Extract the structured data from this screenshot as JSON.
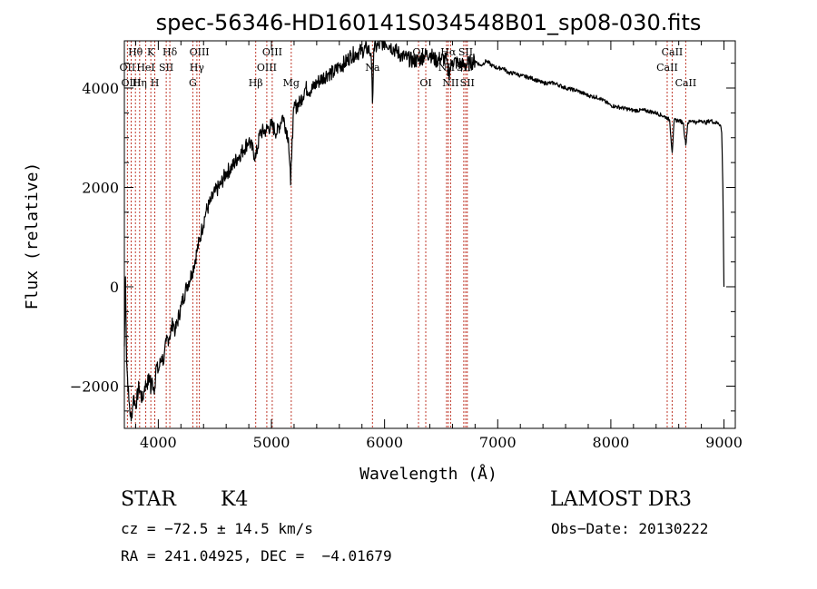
{
  "chart_data": {
    "type": "line",
    "title": "spec-56346-HD160141S034548B01_sp08-030.fits",
    "xlabel": "Wavelength (Å)",
    "ylabel": "Flux (relative)",
    "xlim": [
      3700,
      9100
    ],
    "ylim": [
      -2850,
      4950
    ],
    "x_ticks": [
      4000,
      5000,
      6000,
      7000,
      8000,
      9000
    ],
    "y_ticks": [
      -2000,
      0,
      2000,
      4000
    ],
    "x_tick_labels": [
      "4000",
      "5000",
      "6000",
      "7000",
      "8000",
      "9000"
    ],
    "y_tick_labels": [
      "−2000",
      "0",
      "2000",
      "4000"
    ],
    "series": [
      {
        "name": "spectrum",
        "x": [
          3700,
          3710,
          3720,
          3740,
          3760,
          3780,
          3800,
          3830,
          3860,
          3880,
          3900,
          3930,
          3933,
          3940,
          3968,
          3980,
          4000,
          4030,
          4050,
          4070,
          4100,
          4130,
          4150,
          4200,
          4250,
          4300,
          4340,
          4380,
          4420,
          4460,
          4500,
          4550,
          4600,
          4650,
          4700,
          4750,
          4800,
          4861,
          4900,
          4950,
          5000,
          5050,
          5100,
          5150,
          5170,
          5183,
          5200,
          5250,
          5300,
          5350,
          5400,
          5450,
          5500,
          5550,
          5600,
          5650,
          5700,
          5750,
          5800,
          5850,
          5880,
          5893,
          5905,
          5950,
          6000,
          6050,
          6100,
          6150,
          6200,
          6250,
          6300,
          6350,
          6400,
          6450,
          6500,
          6550,
          6563,
          6600,
          6650,
          6700,
          6750,
          6800,
          6850,
          6900,
          6950,
          7000,
          7050,
          7100,
          7150,
          7200,
          7300,
          7400,
          7500,
          7600,
          7700,
          7800,
          7900,
          8000,
          8100,
          8200,
          8300,
          8400,
          8450,
          8498,
          8520,
          8542,
          8560,
          8600,
          8640,
          8662,
          8680,
          8720,
          8760,
          8800,
          8840,
          8880,
          8920,
          8950,
          8970,
          8980,
          8990,
          9000
        ],
        "y": [
          -1200,
          200,
          -1500,
          -2300,
          -2700,
          -2200,
          -2400,
          -2000,
          -2300,
          -2000,
          -1950,
          -1800,
          -2150,
          -1900,
          -2050,
          -1600,
          -1700,
          -1400,
          -1500,
          -1100,
          -1000,
          -700,
          -900,
          -400,
          0,
          300,
          700,
          1100,
          1500,
          1700,
          1900,
          2050,
          2300,
          2400,
          2600,
          2750,
          2950,
          2600,
          3100,
          3150,
          3250,
          3100,
          3450,
          3000,
          2050,
          3000,
          3600,
          3700,
          4000,
          3950,
          4100,
          4200,
          4300,
          4300,
          4450,
          4500,
          4650,
          4700,
          4750,
          4800,
          4700,
          3700,
          4800,
          4850,
          4950,
          4850,
          4750,
          4650,
          4600,
          4550,
          4550,
          4650,
          4700,
          4550,
          4600,
          4550,
          4250,
          4550,
          4500,
          4450,
          4500,
          4550,
          4450,
          4550,
          4450,
          4400,
          4400,
          4300,
          4300,
          4250,
          4200,
          4100,
          4100,
          4000,
          3950,
          3850,
          3800,
          3650,
          3600,
          3550,
          3550,
          3500,
          3450,
          3400,
          3350,
          2700,
          3350,
          3350,
          3300,
          2850,
          3300,
          3350,
          3300,
          3350,
          3300,
          3350,
          3300,
          3300,
          3250,
          3100,
          2000,
          0
        ]
      }
    ],
    "lines": [
      {
        "label": "Hθ",
        "x": 3798,
        "row": 0
      },
      {
        "label": "OII",
        "x": 3727,
        "row": 1
      },
      {
        "label": "OIII",
        "x": 3760,
        "row": 2
      },
      {
        "label": "K",
        "x": 3934,
        "row": 0
      },
      {
        "label": "HeI",
        "x": 3889,
        "row": 1
      },
      {
        "label": "Hη",
        "x": 3835,
        "row": 2
      },
      {
        "label": "SII",
        "x": 4070,
        "row": 1
      },
      {
        "label": "H",
        "x": 3969,
        "row": 2
      },
      {
        "label": "Hδ",
        "x": 4102,
        "row": 0
      },
      {
        "label": "OIII",
        "x": 4363,
        "row": 0
      },
      {
        "label": "Hγ",
        "x": 4341,
        "row": 1
      },
      {
        "label": "G",
        "x": 4305,
        "row": 2
      },
      {
        "label": "Hβ",
        "x": 4861,
        "row": 2
      },
      {
        "label": "OIII",
        "x": 5007,
        "row": 0
      },
      {
        "label": "OIII",
        "x": 4959,
        "row": 1
      },
      {
        "label": "Mg",
        "x": 5175,
        "row": 2
      },
      {
        "label": "Na",
        "x": 5893,
        "row": 1
      },
      {
        "label": "OI",
        "x": 6300,
        "row": 0
      },
      {
        "label": "OI",
        "x": 6364,
        "row": 2
      },
      {
        "label": "Hα",
        "x": 6563,
        "row": 0
      },
      {
        "label": "NII",
        "x": 6548,
        "row": 1
      },
      {
        "label": "NII",
        "x": 6584,
        "row": 2
      },
      {
        "label": "SII",
        "x": 6717,
        "row": 0
      },
      {
        "label": "SII",
        "x": 6700,
        "row": 1
      },
      {
        "label": "SII",
        "x": 6731,
        "row": 2
      },
      {
        "label": "CaII",
        "x": 8542,
        "row": 0
      },
      {
        "label": "CaII",
        "x": 8498,
        "row": 1
      },
      {
        "label": "CaII",
        "x": 8662,
        "row": 2
      }
    ]
  },
  "footer": {
    "object_type": "STAR",
    "subclass": "K4",
    "survey": "LAMOST DR3",
    "redshift": "cz = −72.5 ± 14.5 km/s",
    "obs_date": "Obs−Date: 20130222",
    "coords": "RA = 241.04925, DEC =  −4.01679"
  }
}
